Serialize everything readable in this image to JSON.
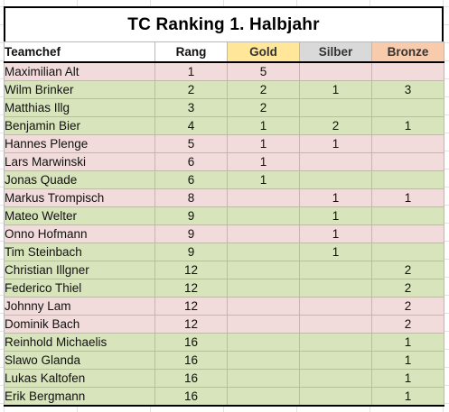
{
  "title": "TC Ranking 1. Halbjahr",
  "headers": {
    "name": "Teamchef",
    "rang": "Rang",
    "gold": "Gold",
    "silber": "Silber",
    "bronze": "Bronze"
  },
  "colors": {
    "pink_row": "#f2dcdb",
    "green_row": "#d8e4bc",
    "gold_header": "#ffe699",
    "silber_header": "#d9d9d9",
    "bronze_header": "#f8cbad"
  },
  "rows": [
    {
      "name": "Maximilian Alt",
      "rang": "1",
      "gold": "5",
      "silber": "",
      "bronze": "",
      "tint": "pink"
    },
    {
      "name": "Wilm Brinker",
      "rang": "2",
      "gold": "2",
      "silber": "1",
      "bronze": "3",
      "tint": "green"
    },
    {
      "name": "Matthias Illg",
      "rang": "3",
      "gold": "2",
      "silber": "",
      "bronze": "",
      "tint": "green"
    },
    {
      "name": "Benjamin Bier",
      "rang": "4",
      "gold": "1",
      "silber": "2",
      "bronze": "1",
      "tint": "green"
    },
    {
      "name": "Hannes Plenge",
      "rang": "5",
      "gold": "1",
      "silber": "1",
      "bronze": "",
      "tint": "pink"
    },
    {
      "name": "Lars Marwinski",
      "rang": "6",
      "gold": "1",
      "silber": "",
      "bronze": "",
      "tint": "pink"
    },
    {
      "name": "Jonas Quade",
      "rang": "6",
      "gold": "1",
      "silber": "",
      "bronze": "",
      "tint": "green"
    },
    {
      "name": "Markus Trompisch",
      "rang": "8",
      "gold": "",
      "silber": "1",
      "bronze": "1",
      "tint": "pink"
    },
    {
      "name": "Mateo Welter",
      "rang": "9",
      "gold": "",
      "silber": "1",
      "bronze": "",
      "tint": "green"
    },
    {
      "name": "Onno Hofmann",
      "rang": "9",
      "gold": "",
      "silber": "1",
      "bronze": "",
      "tint": "pink"
    },
    {
      "name": "Tim Steinbach",
      "rang": "9",
      "gold": "",
      "silber": "1",
      "bronze": "",
      "tint": "green"
    },
    {
      "name": "Christian Illgner",
      "rang": "12",
      "gold": "",
      "silber": "",
      "bronze": "2",
      "tint": "green"
    },
    {
      "name": "Federico Thiel",
      "rang": "12",
      "gold": "",
      "silber": "",
      "bronze": "2",
      "tint": "green"
    },
    {
      "name": "Johnny Lam",
      "rang": "12",
      "gold": "",
      "silber": "",
      "bronze": "2",
      "tint": "pink"
    },
    {
      "name": "Dominik Bach",
      "rang": "12",
      "gold": "",
      "silber": "",
      "bronze": "2",
      "tint": "pink"
    },
    {
      "name": "Reinhold Michaelis",
      "rang": "16",
      "gold": "",
      "silber": "",
      "bronze": "1",
      "tint": "green"
    },
    {
      "name": "Slawo Glanda",
      "rang": "16",
      "gold": "",
      "silber": "",
      "bronze": "1",
      "tint": "green"
    },
    {
      "name": "Lukas Kaltofen",
      "rang": "16",
      "gold": "",
      "silber": "",
      "bronze": "1",
      "tint": "green"
    },
    {
      "name": "Erik Bergmann",
      "rang": "16",
      "gold": "",
      "silber": "",
      "bronze": "1",
      "tint": "green"
    }
  ]
}
